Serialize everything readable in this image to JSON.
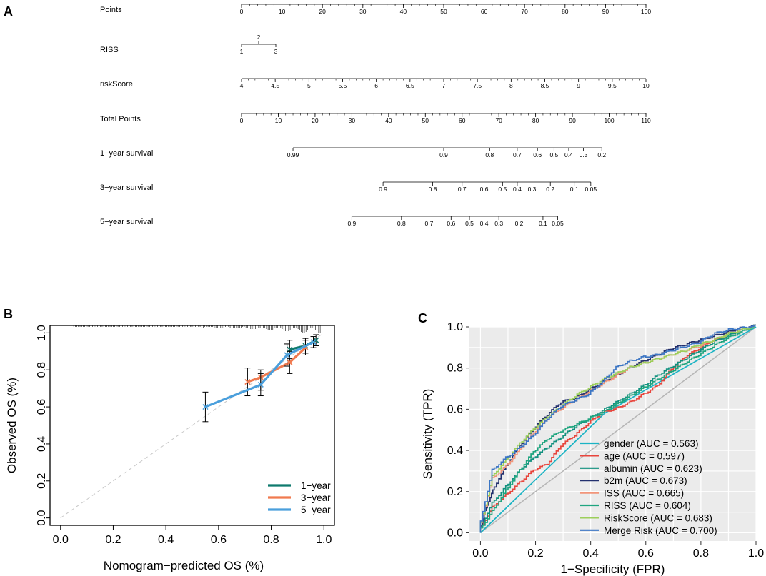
{
  "panels": {
    "a": "A",
    "b": "B",
    "c": "C"
  },
  "chart_data": [
    {
      "type": "nomogram",
      "rows": [
        {
          "label": "Points",
          "vmin": 0,
          "vmax": 100,
          "ticks": [
            "0",
            "10",
            "20",
            "30",
            "40",
            "50",
            "60",
            "70",
            "80",
            "90",
            "100"
          ],
          "minor_step": 2
        },
        {
          "label": "RISS",
          "categories": [
            "1",
            "2",
            "3"
          ]
        },
        {
          "label": "riskScore",
          "vmin": 4,
          "vmax": 10,
          "ticks": [
            "4",
            "4.5",
            "5",
            "5.5",
            "6",
            "6.5",
            "7",
            "7.5",
            "8",
            "8.5",
            "9",
            "9.5",
            "10"
          ]
        },
        {
          "label": "Total Points",
          "vmin": 0,
          "vmax": 110,
          "ticks": [
            "0",
            "10",
            "20",
            "30",
            "40",
            "50",
            "60",
            "70",
            "80",
            "90",
            "100",
            "110"
          ],
          "minor_step": 2
        },
        {
          "label": "1−year survival",
          "ticks": [
            "0.99",
            "0.9",
            "0.8",
            "0.7",
            "0.6",
            "0.5",
            "0.4",
            "0.3",
            "0.2"
          ],
          "total_points": [
            14,
            55,
            67.5,
            75,
            80.5,
            85,
            89,
            93,
            98
          ]
        },
        {
          "label": "3−year survival",
          "ticks": [
            "0.9",
            "0.8",
            "0.7",
            "0.6",
            "0.5",
            "0.4",
            "0.3",
            "0.2",
            "0.1",
            "0.05"
          ],
          "total_points": [
            38.5,
            52,
            60,
            66,
            71,
            75,
            79,
            84,
            90.5,
            95
          ]
        },
        {
          "label": "5−year survival",
          "ticks": [
            "0.9",
            "0.8",
            "0.7",
            "0.6",
            "0.5",
            "0.4",
            "0.3",
            "0.2",
            "0.1",
            "0.05"
          ],
          "total_points": [
            30,
            43.5,
            51,
            57,
            62,
            66,
            70,
            75.5,
            82,
            86
          ]
        }
      ]
    },
    {
      "type": "line",
      "title": "",
      "xlabel": "Nomogram−predicted OS (%)",
      "ylabel": "Observed OS (%)",
      "xlim": [
        -0.04,
        1.04
      ],
      "ylim": [
        -0.04,
        1.04
      ],
      "xticks": [
        "0.0",
        "0.2",
        "0.4",
        "0.6",
        "0.8",
        "1.0"
      ],
      "yticks": [
        "0.0",
        "0.2",
        "0.4",
        "0.6",
        "0.8",
        "1.0"
      ],
      "series": [
        {
          "name": "1−year",
          "color": "#0f7a6e",
          "x": [
            0.87,
            0.93,
            0.97
          ],
          "y": [
            0.91,
            0.93,
            0.96
          ],
          "err_low": [
            0.86,
            0.89,
            0.93
          ],
          "err_high": [
            0.96,
            0.97,
            0.99
          ]
        },
        {
          "name": "3−year",
          "color": "#f07a4f",
          "x": [
            0.71,
            0.76,
            0.87,
            0.93
          ],
          "y": [
            0.735,
            0.76,
            0.84,
            0.92
          ],
          "err_low": [
            0.66,
            0.69,
            0.78,
            0.88
          ],
          "err_high": [
            0.81,
            0.8,
            0.9,
            0.96
          ]
        },
        {
          "name": "5−year",
          "color": "#4a9fdc",
          "x": [
            0.55,
            0.76,
            0.86,
            0.96
          ],
          "y": [
            0.6,
            0.72,
            0.88,
            0.95
          ],
          "err_low": [
            0.52,
            0.66,
            0.82,
            0.92
          ],
          "err_high": [
            0.68,
            0.78,
            0.94,
            0.98
          ]
        }
      ]
    },
    {
      "type": "line",
      "title": "",
      "xlabel": "1−Specificity (FPR)",
      "ylabel": "Sensitivity (TPR)",
      "xlim": [
        -0.04,
        1.0
      ],
      "ylim": [
        0,
        1.0
      ],
      "xticks": [
        "0.0",
        "0.2",
        "0.4",
        "0.6",
        "0.8",
        "1.0"
      ],
      "yticks": [
        "0.0",
        "0.2",
        "0.4",
        "0.6",
        "0.8",
        "1.0"
      ],
      "series": [
        {
          "name": "gender (AUC = 0.563)",
          "color": "#1ab3c4",
          "x": [
            0,
            0.45,
            1
          ],
          "y": [
            0,
            0.58,
            1
          ]
        },
        {
          "name": "age (AUC = 0.597)",
          "color": "#e8453c",
          "x": [
            0,
            0.05,
            0.1,
            0.15,
            0.2,
            0.25,
            0.3,
            0.35,
            0.4,
            0.45,
            0.5,
            0.55,
            0.6,
            0.65,
            0.7,
            0.75,
            0.8,
            0.85,
            0.9,
            0.95,
            1
          ],
          "y": [
            0,
            0.12,
            0.18,
            0.24,
            0.3,
            0.33,
            0.42,
            0.47,
            0.53,
            0.58,
            0.6,
            0.63,
            0.67,
            0.71,
            0.79,
            0.85,
            0.89,
            0.93,
            0.95,
            0.98,
            1
          ]
        },
        {
          "name": "albumin (AUC = 0.623)",
          "color": "#12917f",
          "x": [
            0,
            0.05,
            0.1,
            0.15,
            0.2,
            0.25,
            0.3,
            0.35,
            0.4,
            0.45,
            0.5,
            0.55,
            0.6,
            0.65,
            0.7,
            0.75,
            0.8,
            0.85,
            0.9,
            0.95,
            1
          ],
          "y": [
            0,
            0.14,
            0.22,
            0.3,
            0.36,
            0.41,
            0.46,
            0.51,
            0.55,
            0.59,
            0.63,
            0.67,
            0.71,
            0.76,
            0.8,
            0.84,
            0.88,
            0.92,
            0.95,
            0.98,
            1
          ]
        },
        {
          "name": "b2m (AUC = 0.673)",
          "color": "#23306e",
          "x": [
            0,
            0.02,
            0.05,
            0.1,
            0.15,
            0.2,
            0.25,
            0.3,
            0.35,
            0.4,
            0.45,
            0.5,
            0.55,
            0.6,
            0.65,
            0.7,
            0.75,
            0.8,
            0.85,
            0.9,
            0.95,
            1
          ],
          "y": [
            0,
            0.1,
            0.2,
            0.32,
            0.42,
            0.5,
            0.57,
            0.63,
            0.65,
            0.69,
            0.73,
            0.76,
            0.8,
            0.83,
            0.86,
            0.89,
            0.91,
            0.93,
            0.95,
            0.97,
            0.99,
            1
          ]
        },
        {
          "name": "ISS (AUC = 0.665)",
          "color": "#f2957a",
          "x": [
            0,
            0.05,
            0.1,
            0.15,
            0.2,
            0.25,
            0.3,
            0.35,
            0.4,
            0.45,
            0.5,
            0.55,
            0.6,
            0.65,
            0.7,
            0.75,
            0.8,
            0.85,
            0.9,
            0.95,
            1
          ],
          "y": [
            0,
            0.26,
            0.32,
            0.4,
            0.48,
            0.55,
            0.6,
            0.64,
            0.68,
            0.72,
            0.76,
            0.8,
            0.82,
            0.84,
            0.86,
            0.88,
            0.9,
            0.93,
            0.96,
            0.98,
            1
          ]
        },
        {
          "name": "RISS (AUC = 0.604)",
          "color": "#1fa57f",
          "x": [
            0,
            0.05,
            0.1,
            0.15,
            0.2,
            0.25,
            0.3,
            0.35,
            0.4,
            0.45,
            0.5,
            0.55,
            0.6,
            0.65,
            0.7,
            0.75,
            0.8,
            0.85,
            0.9,
            0.95,
            1
          ],
          "y": [
            0,
            0.1,
            0.2,
            0.3,
            0.39,
            0.45,
            0.49,
            0.52,
            0.55,
            0.58,
            0.62,
            0.66,
            0.7,
            0.74,
            0.78,
            0.82,
            0.86,
            0.9,
            0.94,
            0.97,
            1
          ]
        },
        {
          "name": "RiskScore (AUC = 0.683)",
          "color": "#9ccf5b",
          "x": [
            0,
            0.05,
            0.1,
            0.15,
            0.2,
            0.25,
            0.3,
            0.35,
            0.4,
            0.45,
            0.5,
            0.55,
            0.6,
            0.65,
            0.7,
            0.75,
            0.8,
            0.85,
            0.9,
            0.95,
            1
          ],
          "y": [
            0,
            0.27,
            0.35,
            0.43,
            0.5,
            0.56,
            0.61,
            0.66,
            0.7,
            0.74,
            0.77,
            0.8,
            0.82,
            0.84,
            0.86,
            0.88,
            0.91,
            0.93,
            0.96,
            0.98,
            1
          ]
        },
        {
          "name": "Merge Risk (AUC = 0.700)",
          "color": "#3c76c4",
          "x": [
            0,
            0.05,
            0.1,
            0.15,
            0.2,
            0.25,
            0.3,
            0.35,
            0.4,
            0.45,
            0.5,
            0.55,
            0.6,
            0.65,
            0.7,
            0.75,
            0.8,
            0.85,
            0.9,
            0.95,
            1
          ],
          "y": [
            0,
            0.3,
            0.36,
            0.41,
            0.47,
            0.55,
            0.61,
            0.64,
            0.67,
            0.73,
            0.8,
            0.83,
            0.85,
            0.86,
            0.88,
            0.9,
            0.92,
            0.96,
            0.98,
            0.99,
            1
          ]
        }
      ]
    }
  ]
}
